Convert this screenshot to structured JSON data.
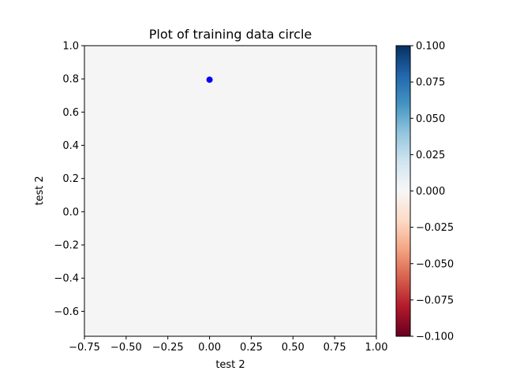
{
  "chart_data": {
    "type": "scatter",
    "title": "Plot of training data circle",
    "xlabel": "test 2",
    "ylabel": "test 2",
    "xlim": [
      -0.75,
      1.0
    ],
    "ylim": [
      -0.75,
      1.0
    ],
    "x_ticks": [
      "−0.75",
      "−0.50",
      "−0.25",
      "0.00",
      "0.25",
      "0.50",
      "0.75",
      "1.00"
    ],
    "x_tick_values": [
      -0.75,
      -0.5,
      -0.25,
      0.0,
      0.25,
      0.5,
      0.75,
      1.0
    ],
    "y_ticks": [
      "−0.6",
      "−0.4",
      "−0.2",
      "0.0",
      "0.2",
      "0.4",
      "0.6",
      "0.8",
      "1.0"
    ],
    "y_tick_values": [
      -0.6,
      -0.4,
      -0.2,
      0.0,
      0.2,
      0.4,
      0.6,
      0.8,
      1.0
    ],
    "points": [
      {
        "x": 0.0,
        "y": 0.795,
        "color": "#0000ff"
      }
    ],
    "background_color": "#f5f5f5",
    "grid": false,
    "colorbar": {
      "colormap": "RdBu",
      "range": [
        -0.1,
        0.1
      ],
      "ticks": [
        "−0.100",
        "−0.075",
        "−0.050",
        "−0.025",
        "0.000",
        "0.025",
        "0.050",
        "0.075",
        "0.100"
      ],
      "tick_values": [
        -0.1,
        -0.075,
        -0.05,
        -0.025,
        0.0,
        0.025,
        0.05,
        0.075,
        0.1
      ],
      "stops": [
        "#67001f",
        "#b2182b",
        "#d6604d",
        "#f4a582",
        "#fddbc7",
        "#f7f7f7",
        "#d1e5f0",
        "#92c5de",
        "#4393c3",
        "#2166ac",
        "#053061"
      ]
    }
  }
}
